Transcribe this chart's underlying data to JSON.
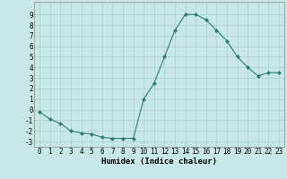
{
  "x": [
    0,
    1,
    2,
    3,
    4,
    5,
    6,
    7,
    8,
    9,
    10,
    11,
    12,
    13,
    14,
    15,
    16,
    17,
    18,
    19,
    20,
    21,
    22,
    23
  ],
  "y": [
    -0.2,
    -0.9,
    -1.3,
    -2.0,
    -2.2,
    -2.3,
    -2.6,
    -2.7,
    -2.7,
    -2.7,
    1.0,
    2.5,
    5.0,
    7.5,
    9.0,
    9.0,
    8.5,
    7.5,
    6.5,
    5.0,
    4.0,
    3.2,
    3.5,
    3.5
  ],
  "line_color": "#2e7d6e",
  "marker": "D",
  "marker_size": 2,
  "bg_color": "#c8e8e8",
  "grid_color": "#aacfcf",
  "xlabel": "Humidex (Indice chaleur)",
  "ylim": [
    -3.5,
    10.2
  ],
  "xlim": [
    -0.5,
    23.5
  ],
  "yticks": [
    -3,
    -2,
    -1,
    0,
    1,
    2,
    3,
    4,
    5,
    6,
    7,
    8,
    9
  ],
  "xticks": [
    0,
    1,
    2,
    3,
    4,
    5,
    6,
    7,
    8,
    9,
    10,
    11,
    12,
    13,
    14,
    15,
    16,
    17,
    18,
    19,
    20,
    21,
    22,
    23
  ],
  "tick_fontsize": 5.5,
  "label_fontsize": 6.5
}
